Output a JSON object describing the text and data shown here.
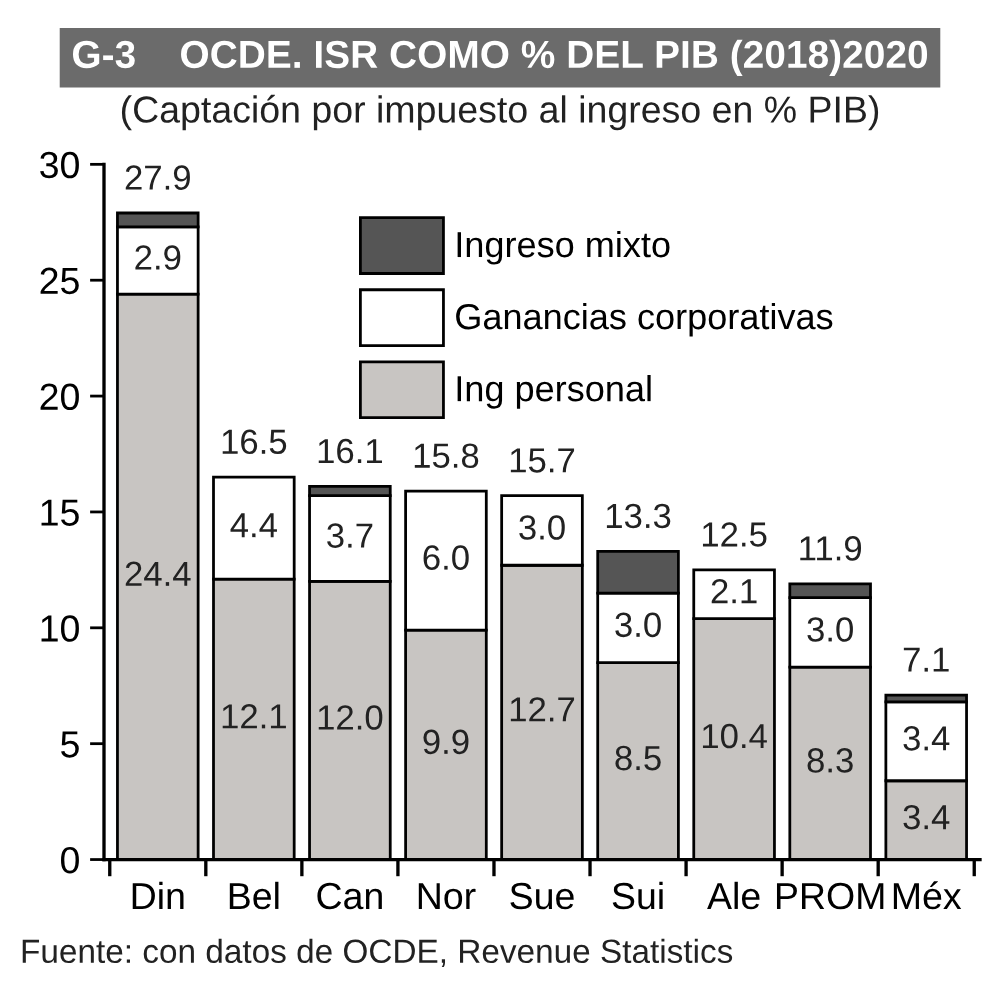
{
  "chart_data": {
    "type": "bar",
    "title": "G-3    OCDE. ISR COMO % DEL PIB (2018)2020",
    "subtitle": "(Captación por impuesto al ingreso en % PIB)",
    "annotations": [
      "Fuente: con datos de OCDE, Revenue Statistics"
    ],
    "categories": [
      "Din",
      "Bel",
      "Can",
      "Nor",
      "Sue",
      "Sui",
      "Ale",
      "PROM",
      "Méx"
    ],
    "stacked": true,
    "series": [
      {
        "name": "Ing personal",
        "color": "#c8c5c2",
        "values": [
          24.4,
          12.1,
          12.0,
          9.9,
          12.7,
          8.5,
          10.4,
          8.3,
          3.4
        ],
        "value_labels": [
          "24.4",
          "12.1",
          "12.0",
          "9.9",
          "12.7",
          "8.5",
          "10.4",
          "8.3",
          "3.4"
        ]
      },
      {
        "name": "Ganancias corporativas",
        "color": "#ffffff",
        "values": [
          2.9,
          4.4,
          3.7,
          6.0,
          3.0,
          3.0,
          2.1,
          3.0,
          3.4
        ],
        "value_labels": [
          "2.9",
          "4.4",
          "3.7",
          "6.0",
          "3.0",
          "3.0",
          "2.1",
          "3.0",
          "3.4"
        ]
      },
      {
        "name": "Ingreso mixto",
        "color": "#555555",
        "values": [
          0.6,
          null,
          0.4,
          null,
          null,
          1.8,
          null,
          0.6,
          0.3
        ]
      }
    ],
    "totals": [
      "27.9",
      "16.5",
      "16.1",
      "15.8",
      "15.7",
      "13.3",
      "12.5",
      "11.9",
      "7.1"
    ],
    "ylim": [
      0,
      30
    ],
    "yticks": [
      0,
      5,
      10,
      15,
      20,
      25,
      30
    ],
    "grid": false,
    "legend": "top right"
  }
}
